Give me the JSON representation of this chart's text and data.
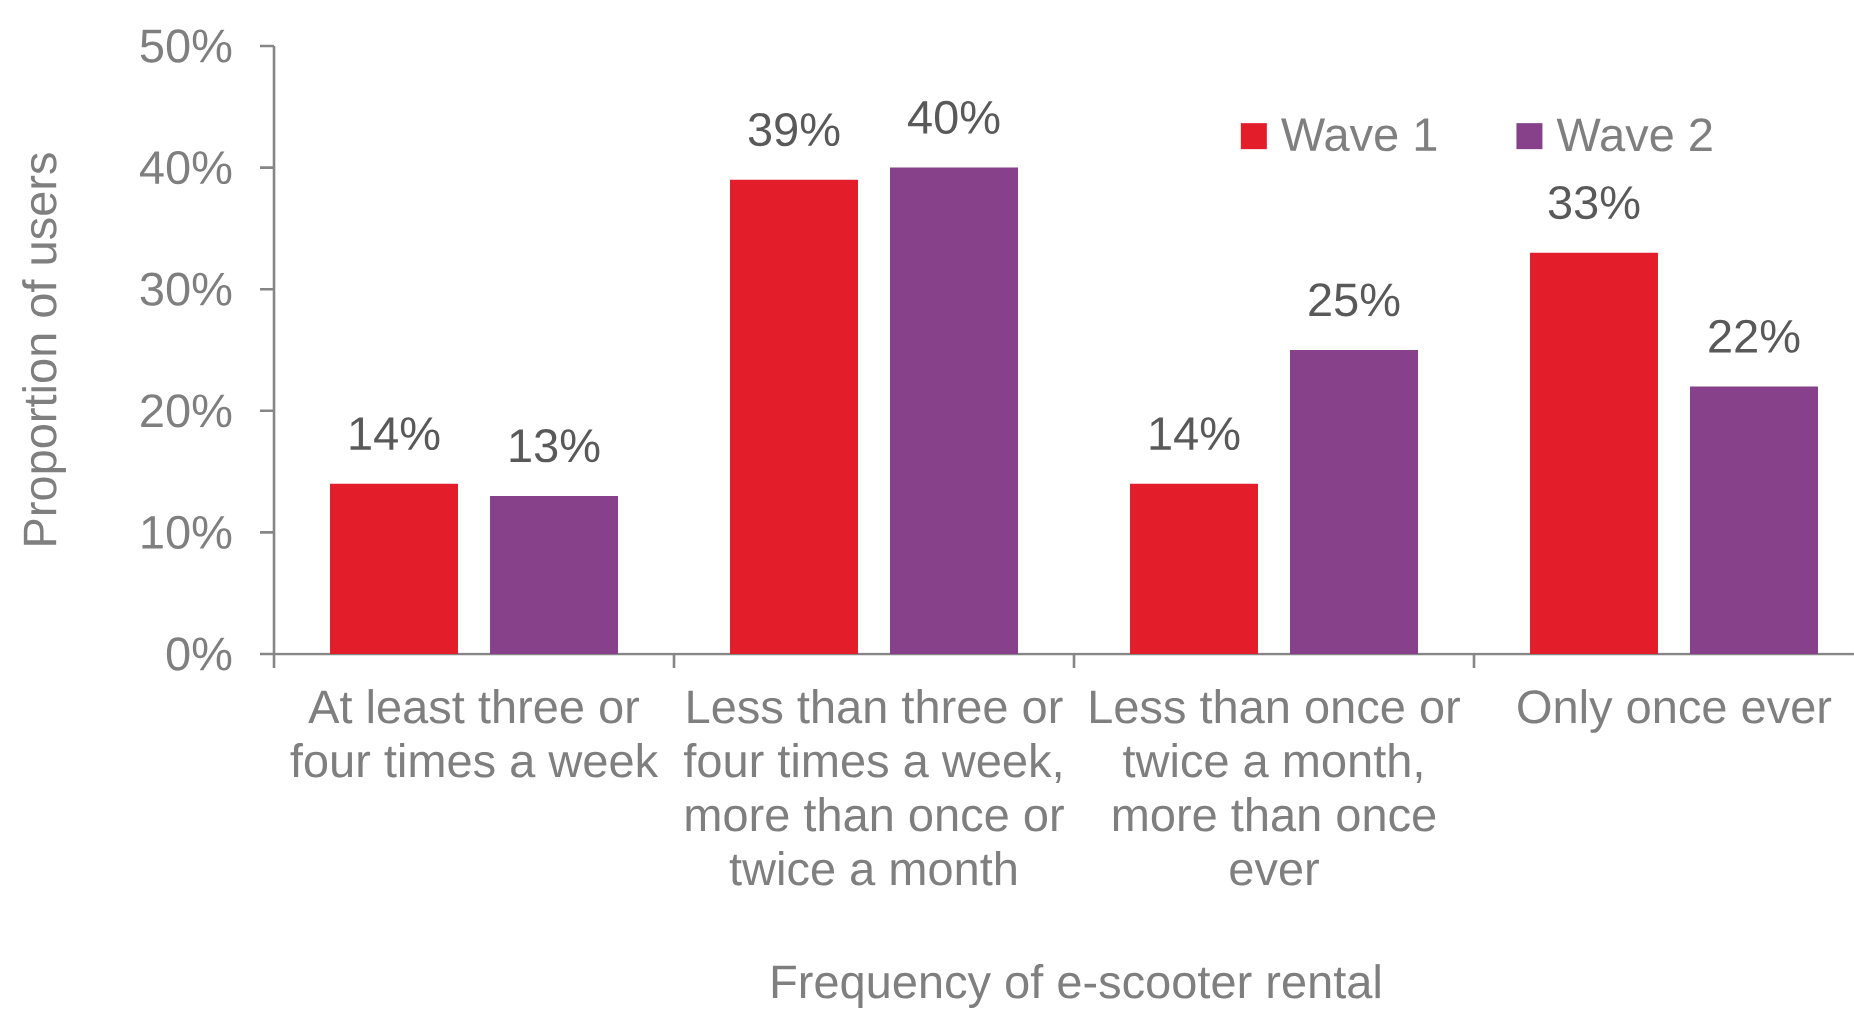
{
  "chart_data": {
    "type": "bar",
    "xlabel": "Frequency of e-scooter rental",
    "ylabel": "Proportion of users",
    "categories": [
      "At least three or four times a week",
      "Less than three or four times a week, more than once or twice a month",
      "Less than once or twice a month, more than once ever",
      "Only once ever"
    ],
    "series": [
      {
        "name": "Wave 1",
        "color": "#e31e2a",
        "values": [
          14,
          39,
          14,
          33
        ],
        "value_labels": [
          "14%",
          "39%",
          "14%",
          "33%"
        ]
      },
      {
        "name": "Wave 2",
        "color": "#86418a",
        "values": [
          13,
          40,
          25,
          22
        ],
        "value_labels": [
          "13%",
          "40%",
          "25%",
          "22%"
        ]
      }
    ],
    "ylim": [
      0,
      50
    ],
    "yticks": [
      {
        "value": 0,
        "label": "0%"
      },
      {
        "value": 10,
        "label": "10%"
      },
      {
        "value": 20,
        "label": "20%"
      },
      {
        "value": 30,
        "label": "30%"
      },
      {
        "value": 40,
        "label": "40%"
      },
      {
        "value": 50,
        "label": "50%"
      }
    ],
    "legend": "top right"
  }
}
